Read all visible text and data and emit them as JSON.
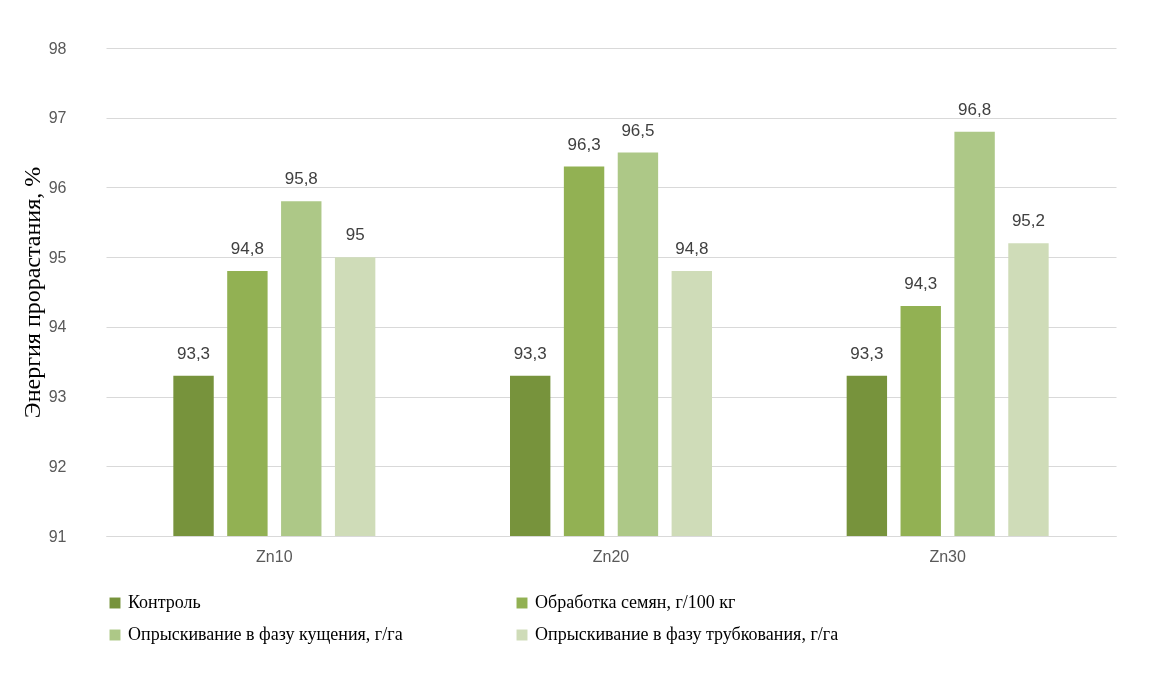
{
  "chart_data": {
    "type": "bar",
    "ylabel": "Энергия прорастания, %",
    "categories": [
      "Zn10",
      "Zn20",
      "Zn30"
    ],
    "series": [
      {
        "name": "Контроль",
        "color": "#77933c",
        "values": [
          93.3,
          93.3,
          93.3
        ],
        "value_labels": [
          "93,3",
          "93,3",
          "93,3"
        ]
      },
      {
        "name": "Обработка семян, г/100 кг",
        "color": "#92b153",
        "values": [
          94.8,
          96.3,
          94.3
        ],
        "value_labels": [
          "94,8",
          "96,3",
          "94,3"
        ]
      },
      {
        "name": "Опрыскивание в фазу кущения, г/га",
        "color": "#adc887",
        "values": [
          95.8,
          96.5,
          96.8
        ],
        "value_labels": [
          "95,8",
          "96,5",
          "96,8"
        ]
      },
      {
        "name": "Опрыскивание в фазу трубкования, г/га",
        "color": "#cfdcb8",
        "values": [
          95,
          94.8,
          95.2
        ],
        "value_labels": [
          "95",
          "94,8",
          "95,2"
        ]
      }
    ],
    "ylim": [
      91,
      98
    ],
    "yticks": [
      91,
      92,
      93,
      94,
      95,
      96,
      97,
      98
    ],
    "grid": "y",
    "legend": "bottom"
  }
}
